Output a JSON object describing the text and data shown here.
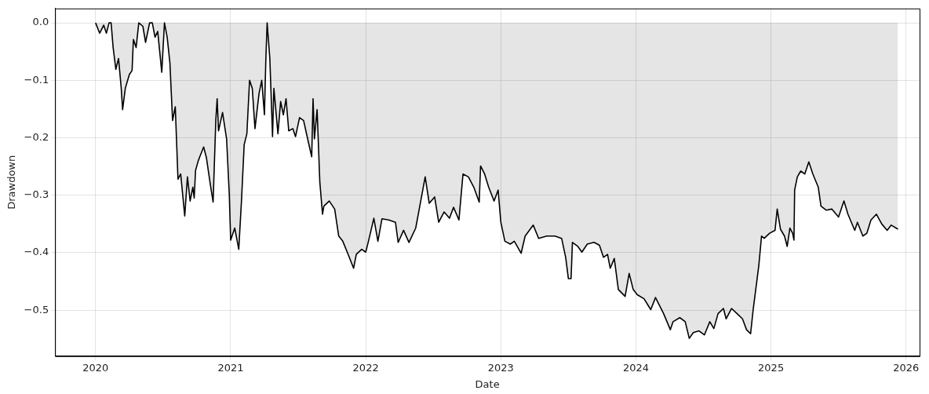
{
  "chart_data": {
    "type": "area",
    "xlabel": "Date",
    "ylabel": "Drawdown",
    "xlim": [
      2019.7,
      2026.1
    ],
    "ylim": [
      -0.58,
      0.025
    ],
    "xticks": [
      2020,
      2021,
      2022,
      2023,
      2024,
      2025,
      2026
    ],
    "yticks": [
      {
        "value": -0.5,
        "label": "−0.5"
      },
      {
        "value": -0.4,
        "label": "−0.4"
      },
      {
        "value": -0.3,
        "label": "−0.3"
      },
      {
        "value": -0.2,
        "label": "−0.2"
      },
      {
        "value": -0.1,
        "label": "−0.1"
      },
      {
        "value": 0,
        "label": "0.0"
      }
    ],
    "grid": true,
    "legend": false,
    "marker": "none",
    "line_style": "solid",
    "series": [
      {
        "color": "#000000",
        "x": [
          2020.0,
          2020.03,
          2020.06,
          2020.08,
          2020.1,
          2020.115,
          2020.13,
          2020.15,
          2020.17,
          2020.19,
          2020.2,
          2020.22,
          2020.25,
          2020.27,
          2020.28,
          2020.3,
          2020.32,
          2020.35,
          2020.37,
          2020.4,
          2020.42,
          2020.44,
          2020.46,
          2020.49,
          2020.51,
          2020.53,
          2020.55,
          2020.57,
          2020.59,
          2020.61,
          2020.63,
          2020.66,
          2020.68,
          2020.7,
          2020.72,
          2020.73,
          2020.74,
          2020.76,
          2020.8,
          2020.82,
          2020.85,
          2020.87,
          2020.89,
          2020.9,
          2020.91,
          2020.94,
          2020.97,
          2020.99,
          2021.0,
          2021.03,
          2021.06,
          2021.08,
          2021.1,
          2021.12,
          2021.14,
          2021.16,
          2021.18,
          2021.21,
          2021.23,
          2021.25,
          2021.26,
          2021.27,
          2021.29,
          2021.31,
          2021.32,
          2021.35,
          2021.37,
          2021.39,
          2021.41,
          2021.43,
          2021.46,
          2021.48,
          2021.51,
          2021.54,
          2021.57,
          2021.6,
          2021.61,
          2021.62,
          2021.64,
          2021.66,
          2021.68,
          2021.69,
          2021.73,
          2021.77,
          2021.8,
          2021.83,
          2021.87,
          2021.91,
          2021.93,
          2021.97,
          2022.0,
          2022.02,
          2022.06,
          2022.09,
          2022.12,
          2022.17,
          2022.22,
          2022.24,
          2022.28,
          2022.32,
          2022.37,
          2022.4,
          2022.44,
          2022.47,
          2022.51,
          2022.54,
          2022.58,
          2022.62,
          2022.65,
          2022.69,
          2022.72,
          2022.76,
          2022.8,
          2022.84,
          2022.85,
          2022.88,
          2022.91,
          2022.95,
          2022.98,
          2023.0,
          2023.03,
          2023.07,
          2023.1,
          2023.15,
          2023.18,
          2023.24,
          2023.28,
          2023.34,
          2023.4,
          2023.45,
          2023.48,
          2023.5,
          2023.52,
          2023.53,
          2023.57,
          2023.6,
          2023.64,
          2023.69,
          2023.73,
          2023.76,
          2023.79,
          2023.81,
          2023.84,
          2023.87,
          2023.92,
          2023.95,
          2023.98,
          2024.01,
          2024.06,
          2024.11,
          2024.145,
          2024.205,
          2024.255,
          2024.275,
          2024.325,
          2024.365,
          2024.395,
          2024.425,
          2024.467,
          2024.507,
          2024.547,
          2024.577,
          2024.608,
          2024.648,
          2024.668,
          2024.708,
          2024.749,
          2024.789,
          2024.819,
          2024.849,
          2024.869,
          2024.89,
          2024.91,
          2024.93,
          2024.95,
          2024.99,
          2025.03,
          2025.046,
          2025.07,
          2025.1,
          2025.12,
          2025.14,
          2025.16,
          2025.17,
          2025.175,
          2025.195,
          2025.22,
          2025.25,
          2025.28,
          2025.31,
          2025.35,
          2025.37,
          2025.41,
          2025.45,
          2025.5,
          2025.54,
          2025.57,
          2025.62,
          2025.64,
          2025.68,
          2025.71,
          2025.74,
          2025.78,
          2025.82,
          2025.86,
          2025.89,
          2025.94
        ],
        "values": [
          0,
          -0.018,
          -0.004,
          -0.018,
          0,
          0,
          -0.043,
          -0.081,
          -0.062,
          -0.114,
          -0.151,
          -0.114,
          -0.09,
          -0.083,
          -0.029,
          -0.043,
          0,
          -0.006,
          -0.034,
          0,
          0,
          -0.025,
          -0.015,
          -0.086,
          0,
          -0.025,
          -0.069,
          -0.17,
          -0.146,
          -0.272,
          -0.263,
          -0.336,
          -0.268,
          -0.31,
          -0.286,
          -0.305,
          -0.257,
          -0.24,
          -0.216,
          -0.234,
          -0.282,
          -0.312,
          -0.17,
          -0.132,
          -0.188,
          -0.156,
          -0.202,
          -0.3,
          -0.378,
          -0.357,
          -0.394,
          -0.31,
          -0.212,
          -0.193,
          -0.1,
          -0.114,
          -0.184,
          -0.123,
          -0.1,
          -0.16,
          -0.067,
          0,
          -0.062,
          -0.198,
          -0.114,
          -0.193,
          -0.137,
          -0.16,
          -0.132,
          -0.188,
          -0.184,
          -0.198,
          -0.165,
          -0.17,
          -0.202,
          -0.233,
          -0.132,
          -0.202,
          -0.151,
          -0.277,
          -0.333,
          -0.319,
          -0.31,
          -0.324,
          -0.371,
          -0.38,
          -0.403,
          -0.427,
          -0.403,
          -0.394,
          -0.399,
          -0.38,
          -0.34,
          -0.38,
          -0.341,
          -0.343,
          -0.347,
          -0.382,
          -0.361,
          -0.382,
          -0.357,
          -0.319,
          -0.268,
          -0.314,
          -0.303,
          -0.347,
          -0.329,
          -0.34,
          -0.321,
          -0.343,
          -0.263,
          -0.268,
          -0.286,
          -0.312,
          -0.249,
          -0.263,
          -0.286,
          -0.31,
          -0.291,
          -0.347,
          -0.38,
          -0.385,
          -0.38,
          -0.401,
          -0.371,
          -0.352,
          -0.375,
          -0.371,
          -0.371,
          -0.375,
          -0.408,
          -0.445,
          -0.445,
          -0.382,
          -0.389,
          -0.399,
          -0.385,
          -0.382,
          -0.387,
          -0.408,
          -0.403,
          -0.427,
          -0.41,
          -0.464,
          -0.476,
          -0.436,
          -0.464,
          -0.473,
          -0.48,
          -0.499,
          -0.478,
          -0.506,
          -0.534,
          -0.52,
          -0.513,
          -0.52,
          -0.549,
          -0.539,
          -0.536,
          -0.543,
          -0.52,
          -0.532,
          -0.506,
          -0.497,
          -0.515,
          -0.497,
          -0.506,
          -0.515,
          -0.534,
          -0.541,
          -0.497,
          -0.459,
          -0.422,
          -0.371,
          -0.375,
          -0.366,
          -0.361,
          -0.324,
          -0.359,
          -0.371,
          -0.389,
          -0.357,
          -0.366,
          -0.378,
          -0.291,
          -0.268,
          -0.258,
          -0.263,
          -0.242,
          -0.263,
          -0.286,
          -0.319,
          -0.326,
          -0.324,
          -0.338,
          -0.31,
          -0.333,
          -0.361,
          -0.347,
          -0.371,
          -0.366,
          -0.343,
          -0.333,
          -0.35,
          -0.361,
          -0.352,
          -0.359
        ]
      }
    ]
  }
}
